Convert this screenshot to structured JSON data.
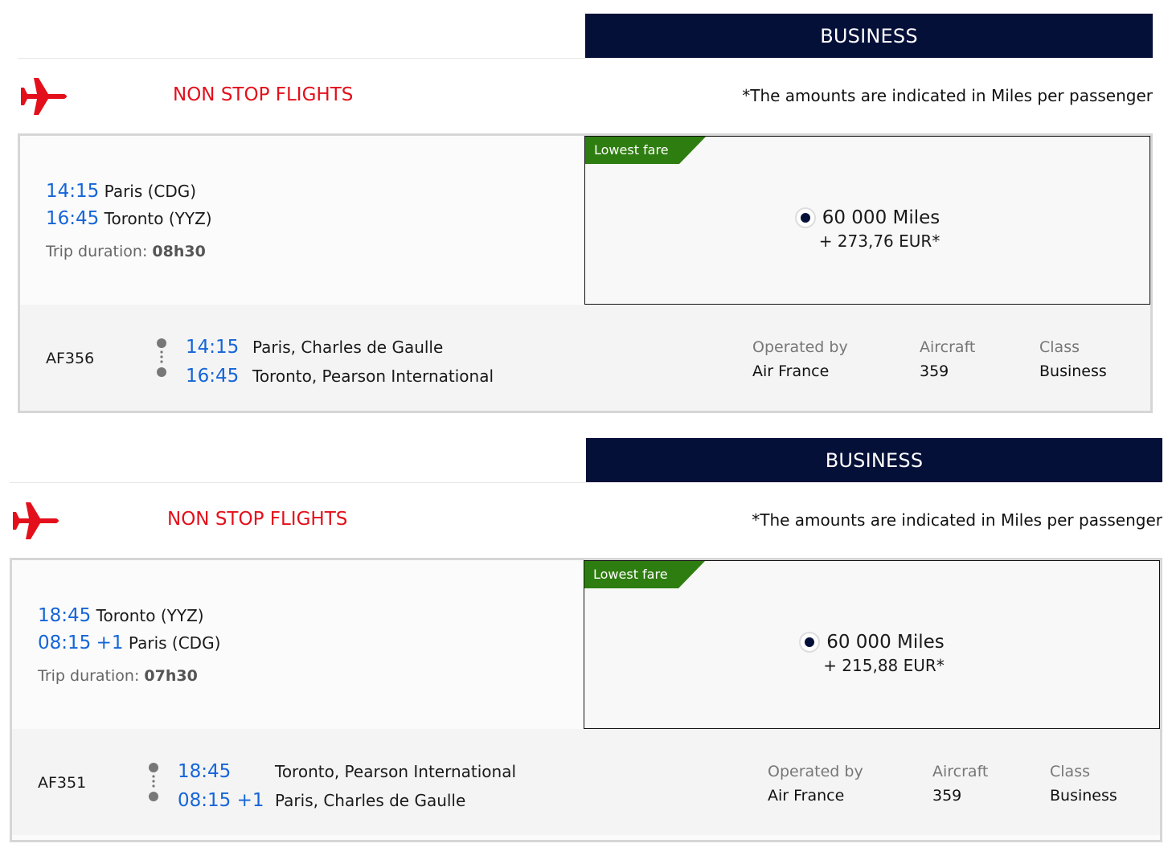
{
  "colors": {
    "header_bar": "#051039",
    "accent_red": "#e3101b",
    "time_blue": "#1565d8",
    "lowest_fare_green": "#2e7d10"
  },
  "flights": [
    {
      "cabin": "BUSINESS",
      "heading": "NON STOP FLIGHTS",
      "note": "*The amounts are indicated in Miles per passenger",
      "icon": "airplane-icon",
      "dep_time": "14:15",
      "dep_place": "Paris (CDG)",
      "arr_time": "16:45",
      "arr_plus": "",
      "arr_place": "Toronto (YYZ)",
      "duration_label": "Trip duration:",
      "duration": "08h30",
      "badge": "Lowest fare",
      "miles": "60 000 Miles",
      "surcharge": "+ 273,76 EUR*",
      "flight_number": "AF356",
      "seg_dep_time": "14:15",
      "seg_dep_airport": "Paris, Charles de Gaulle",
      "seg_arr_time": "16:45",
      "seg_arr_airport": "Toronto, Pearson International",
      "operated_label": "Operated by",
      "operated": "Air France",
      "aircraft_label": "Aircraft",
      "aircraft": "359",
      "class_label": "Class",
      "class": "Business"
    },
    {
      "cabin": "BUSINESS",
      "heading": "NON STOP FLIGHTS",
      "note": "*The amounts are indicated in Miles per passenger",
      "icon": "airplane-icon",
      "dep_time": "18:45",
      "dep_place": "Toronto (YYZ)",
      "arr_time": "08:15",
      "arr_plus": "+1",
      "arr_place": "Paris (CDG)",
      "duration_label": "Trip duration:",
      "duration": "07h30",
      "badge": "Lowest fare",
      "miles": "60 000 Miles",
      "surcharge": "+ 215,88 EUR*",
      "flight_number": "AF351",
      "seg_dep_time": "18:45",
      "seg_dep_airport": "Toronto, Pearson International",
      "seg_arr_time": "08:15 +1",
      "seg_arr_airport": "Paris, Charles de Gaulle",
      "operated_label": "Operated by",
      "operated": "Air France",
      "aircraft_label": "Aircraft",
      "aircraft": "359",
      "class_label": "Class",
      "class": "Business"
    }
  ]
}
